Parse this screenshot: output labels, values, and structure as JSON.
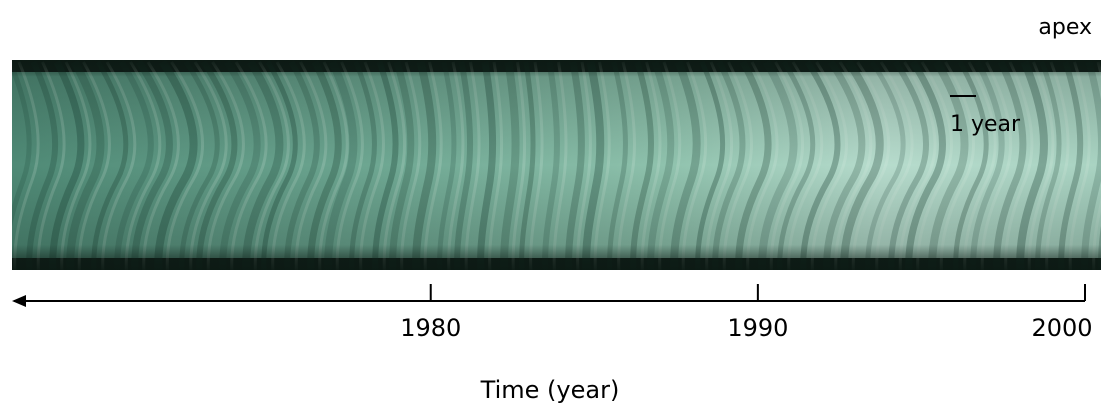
{
  "labels": {
    "apex": "apex",
    "scale": "1 year"
  },
  "axis": {
    "label": "Time (year)",
    "xlim": [
      2000,
      1967.2
    ],
    "xticks": [
      1980,
      1990,
      2000
    ]
  }
}
